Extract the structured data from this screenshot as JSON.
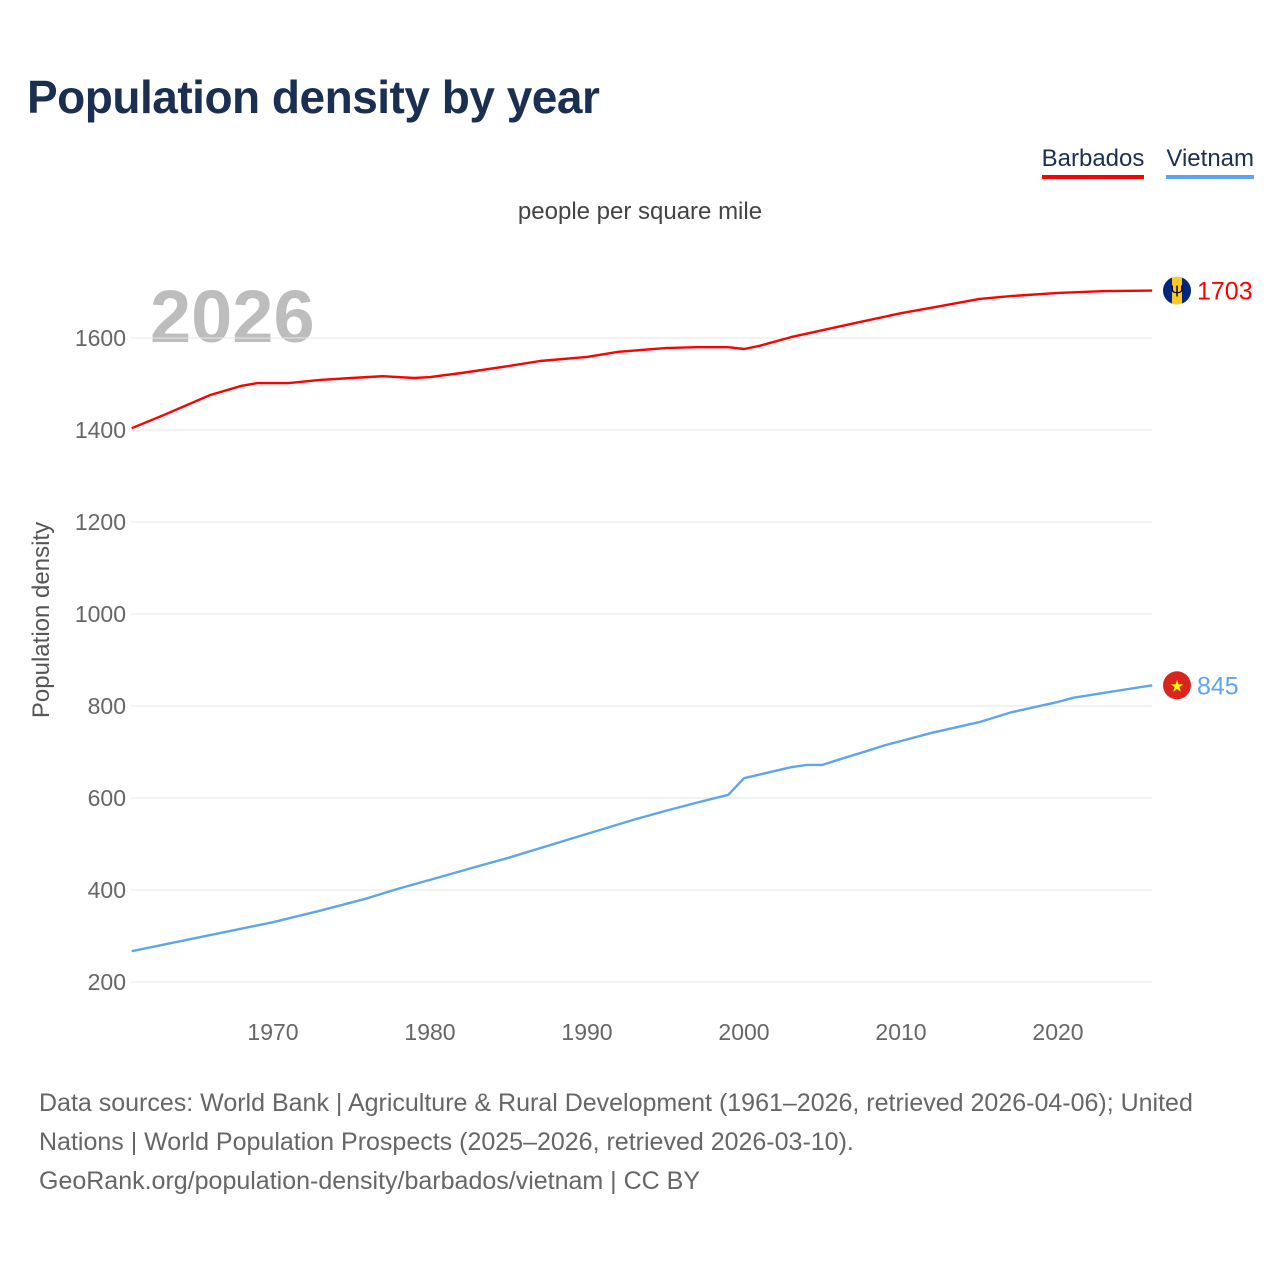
{
  "title": "Population density by year",
  "legend": [
    {
      "label": "Barbados",
      "color": "#ff0000"
    },
    {
      "label": "Vietnam",
      "color": "#5fa5ea"
    }
  ],
  "subtitle": "people per square mile",
  "year_watermark": "2026",
  "footer": {
    "line1": "Data sources: World Bank | Agriculture & Rural Development (1961–2026, retrieved 2026-04-06); United Nations | World Population Prospects (2025–2026, retrieved 2026-03-10).",
    "line2": "GeoRank.org/population-density/barbados/vietnam | CC BY"
  },
  "chart_data": {
    "type": "line",
    "title": "Population density by year",
    "subtitle": "people per square mile",
    "xlabel": "",
    "ylabel": "Population density",
    "xlim": [
      1961,
      2026
    ],
    "ylim": [
      180,
      1760
    ],
    "xticks": [
      1970,
      1980,
      1990,
      2000,
      2010,
      2020
    ],
    "yticks": [
      200,
      400,
      600,
      800,
      1000,
      1200,
      1400,
      1600
    ],
    "grid": true,
    "legend_position": "top-right",
    "series": [
      {
        "name": "Barbados",
        "color": "#ff0000",
        "end_label": "1703",
        "flag": "barbados",
        "x": [
          1961,
          1963,
          1966,
          1968,
          1969,
          1971,
          1973,
          1975,
          1977,
          1979,
          1980,
          1982,
          1985,
          1987,
          1990,
          1992,
          1995,
          1997,
          1999,
          2000,
          2001,
          2003,
          2005,
          2007,
          2010,
          2012,
          2015,
          2017,
          2020,
          2023,
          2026
        ],
        "y": [
          1404,
          1432,
          1476,
          1496,
          1502,
          1502,
          1509,
          1513,
          1517,
          1513,
          1515,
          1524,
          1539,
          1550,
          1559,
          1570,
          1578,
          1580,
          1580,
          1576,
          1583,
          1602,
          1617,
          1632,
          1654,
          1666,
          1685,
          1691,
          1698,
          1702,
          1703
        ]
      },
      {
        "name": "Vietnam",
        "color": "#5fa5ea",
        "end_label": "845",
        "flag": "vietnam",
        "x": [
          1961,
          1966,
          1970,
          1973,
          1976,
          1978,
          1980,
          1983,
          1985,
          1990,
          1993,
          1995,
          1997,
          1999,
          2000,
          2003,
          2004,
          2005,
          2006,
          2008,
          2009,
          2010,
          2012,
          2015,
          2017,
          2020,
          2021,
          2023,
          2026
        ],
        "y": [
          267,
          302,
          330,
          355,
          382,
          403,
          422,
          451,
          470,
          522,
          553,
          572,
          590,
          607,
          643,
          667,
          672,
          672,
          683,
          704,
          715,
          724,
          742,
          765,
          786,
          809,
          818,
          829,
          845
        ]
      }
    ]
  }
}
